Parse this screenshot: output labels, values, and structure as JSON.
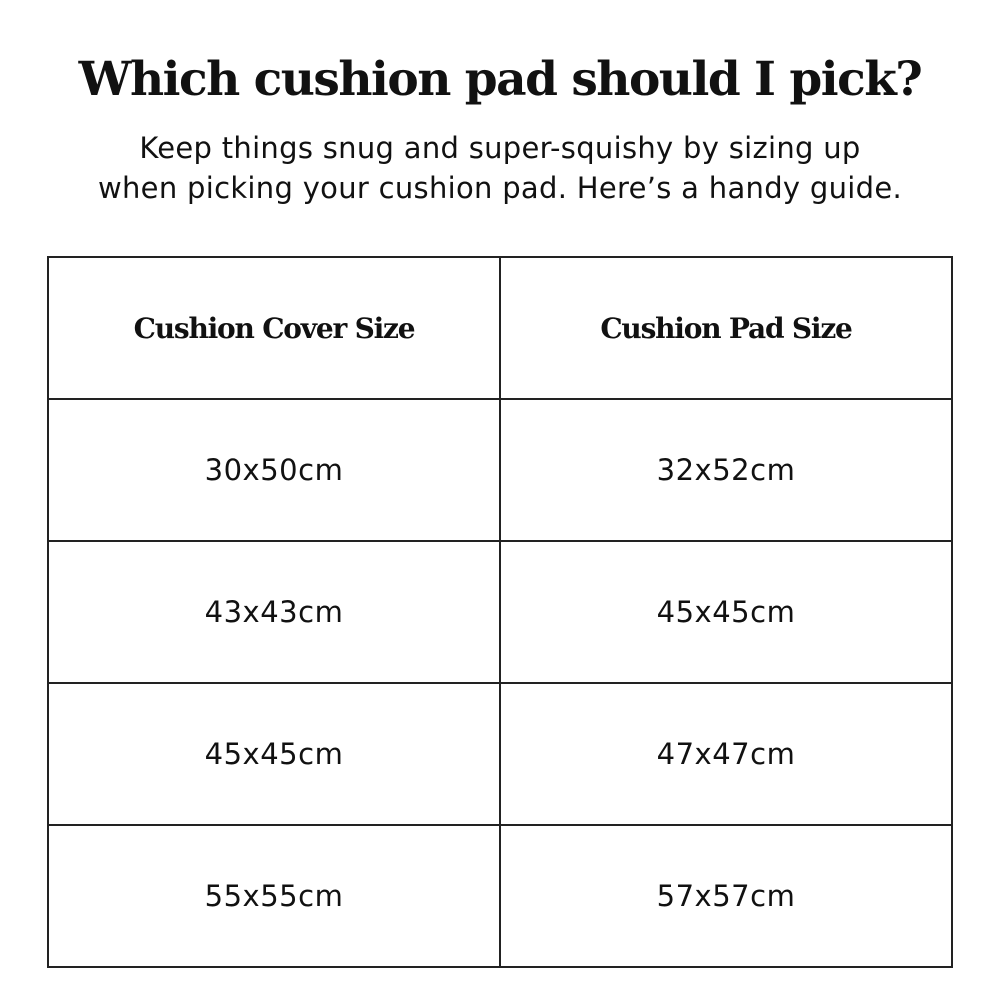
{
  "header": {
    "title": "Which cushion pad should I pick?",
    "subtitle_line1": "Keep things snug and super-squishy by sizing up",
    "subtitle_line2": "when picking your cushion pad. Here’s a handy guide."
  },
  "table": {
    "columns": [
      "Cushion Cover Size",
      "Cushion Pad Size"
    ],
    "rows": [
      [
        "30x50cm",
        "32x52cm"
      ],
      [
        "43x43cm",
        "45x45cm"
      ],
      [
        "45x45cm",
        "47x47cm"
      ],
      [
        "55x55cm",
        "57x57cm"
      ]
    ]
  }
}
